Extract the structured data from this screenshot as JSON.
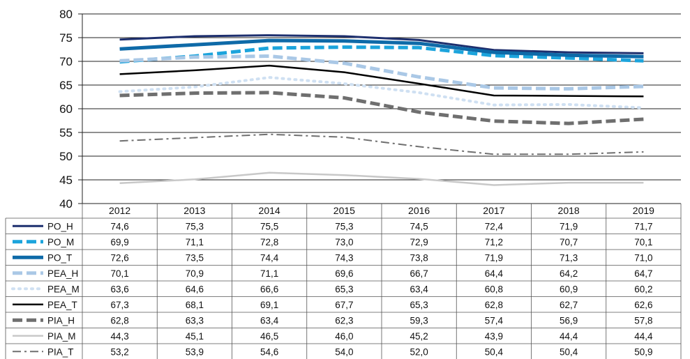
{
  "chart_data": {
    "type": "line",
    "title": "",
    "xlabel": "",
    "ylabel": "",
    "ylim": [
      40,
      80
    ],
    "yticks": [
      "80",
      "75",
      "70",
      "65",
      "60",
      "55",
      "50",
      "45",
      "40"
    ],
    "x": [
      "2012",
      "2013",
      "2014",
      "2015",
      "2016",
      "2017",
      "2018",
      "2019"
    ],
    "legend_placement": "data-table-left",
    "series": [
      {
        "name": "PO_H",
        "color": "#1d2f6e",
        "style": "solid",
        "width": 3,
        "values": [
          74.6,
          75.3,
          75.5,
          75.3,
          74.5,
          72.4,
          71.9,
          71.7
        ],
        "labels": [
          "74,6",
          "75,3",
          "75,5",
          "75,3",
          "74,5",
          "72,4",
          "71,9",
          "71,7"
        ]
      },
      {
        "name": "PO_M",
        "color": "#1ca4dc",
        "style": "dash",
        "width": 5,
        "values": [
          69.9,
          71.1,
          72.8,
          73.0,
          72.9,
          71.2,
          70.7,
          70.1
        ],
        "labels": [
          "69,9",
          "71,1",
          "72,8",
          "73,0",
          "72,9",
          "71,2",
          "70,7",
          "70,1"
        ]
      },
      {
        "name": "PO_T",
        "color": "#0e6aa8",
        "style": "solid",
        "width": 5,
        "values": [
          72.6,
          73.5,
          74.4,
          74.3,
          73.8,
          71.9,
          71.3,
          71.0
        ],
        "labels": [
          "72,6",
          "73,5",
          "74,4",
          "74,3",
          "73,8",
          "71,9",
          "71,3",
          "71,0"
        ]
      },
      {
        "name": "PEA_H",
        "color": "#aac8e6",
        "style": "dash",
        "width": 5,
        "values": [
          70.1,
          70.9,
          71.1,
          69.6,
          66.7,
          64.4,
          64.2,
          64.7
        ],
        "labels": [
          "70,1",
          "70,9",
          "71,1",
          "69,6",
          "66,7",
          "64,4",
          "64,2",
          "64,7"
        ]
      },
      {
        "name": "PEA_M",
        "color": "#cfe0f2",
        "style": "dot",
        "width": 4,
        "values": [
          63.6,
          64.6,
          66.6,
          65.3,
          63.4,
          60.8,
          60.9,
          60.2
        ],
        "labels": [
          "63,6",
          "64,6",
          "66,6",
          "65,3",
          "63,4",
          "60,8",
          "60,9",
          "60,2"
        ]
      },
      {
        "name": "PEA_T",
        "color": "#000000",
        "style": "solid",
        "width": 2.5,
        "values": [
          67.3,
          68.1,
          69.1,
          67.7,
          65.3,
          62.8,
          62.7,
          62.6
        ],
        "labels": [
          "67,3",
          "68,1",
          "69,1",
          "67,7",
          "65,3",
          "62,8",
          "62,7",
          "62,6"
        ]
      },
      {
        "name": "PIA_H",
        "color": "#6f6f6f",
        "style": "dash",
        "width": 5,
        "values": [
          62.8,
          63.3,
          63.4,
          62.3,
          59.3,
          57.4,
          56.9,
          57.8
        ],
        "labels": [
          "62,8",
          "63,3",
          "63,4",
          "62,3",
          "59,3",
          "57,4",
          "56,9",
          "57,8"
        ]
      },
      {
        "name": "PIA_M",
        "color": "#c8c8c8",
        "style": "solid",
        "width": 2.5,
        "values": [
          44.3,
          45.1,
          46.5,
          46.0,
          45.2,
          43.9,
          44.4,
          44.4
        ],
        "labels": [
          "44,3",
          "45,1",
          "46,5",
          "46,0",
          "45,2",
          "43,9",
          "44,4",
          "44,4"
        ]
      },
      {
        "name": "PIA_T",
        "color": "#6f6f6f",
        "style": "dashdot",
        "width": 2,
        "values": [
          53.2,
          53.9,
          54.6,
          54.0,
          52.0,
          50.4,
          50.4,
          50.9
        ],
        "labels": [
          "53,2",
          "53,9",
          "54,6",
          "54,0",
          "52,0",
          "50,4",
          "50,4",
          "50,9"
        ]
      }
    ]
  }
}
